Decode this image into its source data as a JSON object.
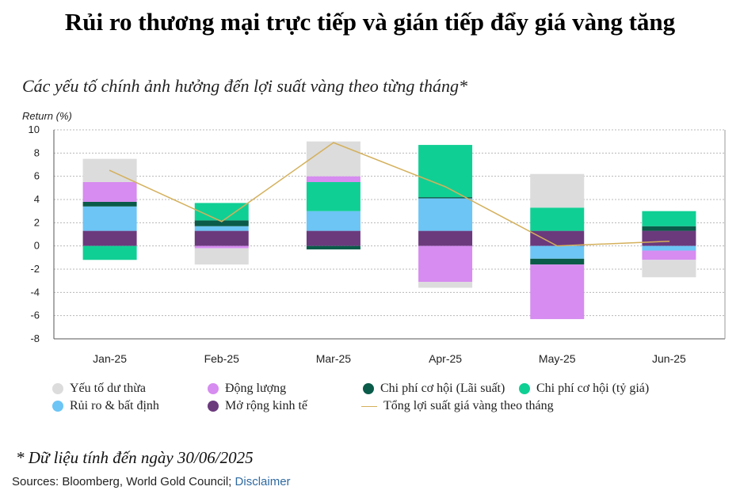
{
  "title": "Rủi ro thương mại trực tiếp và gián tiếp đẩy giá vàng tăng",
  "subtitle": "Các yếu tố chính ảnh hưởng đến lợi suất vàng theo từng tháng*",
  "footnote": "* Dữ liệu tính đến ngày 30/06/2025",
  "sources": {
    "text": "Sources: Bloomberg, World Gold Council;",
    "link": "Disclaimer"
  },
  "chart_data": {
    "type": "bar",
    "stacked": true,
    "ylabel": "Return (%)",
    "ylim": [
      -8,
      10
    ],
    "yticks": [
      10,
      8,
      6,
      4,
      2,
      0,
      -2,
      -4,
      -6,
      -8
    ],
    "grid": true,
    "legend_position": "bottom",
    "categories": [
      "Jan-25",
      "Feb-25",
      "Mar-25",
      "Apr-25",
      "May-25",
      "Jun-25"
    ],
    "series": [
      {
        "name": "Mở rộng kinh tế",
        "color": "#6b3a7d",
        "values": [
          1.3,
          1.3,
          1.3,
          1.3,
          1.3,
          1.3
        ]
      },
      {
        "name": "Rủi ro & bất định",
        "color": "#6cc5f5",
        "values": [
          2.1,
          0.4,
          1.7,
          2.8,
          -1.1,
          -0.4
        ]
      },
      {
        "name": "Chi phí cơ hội (Lãi suất)",
        "color": "#0a5b49",
        "values": [
          0.4,
          0.5,
          -0.3,
          0.1,
          -0.5,
          0.4
        ]
      },
      {
        "name": "Chi phí cơ hội (tỷ giá)",
        "color": "#10cf94",
        "values": [
          -1.2,
          1.5,
          2.5,
          4.5,
          2.0,
          1.3
        ]
      },
      {
        "name": "Động lượng",
        "color": "#d68cf0",
        "values": [
          1.7,
          -0.2,
          0.5,
          -3.1,
          -4.7,
          -0.8
        ]
      },
      {
        "name": "Yếu tố dư thừa",
        "color": "#dcdcdc",
        "values": [
          2.0,
          -1.4,
          3.0,
          -0.5,
          2.9,
          -1.5
        ]
      }
    ],
    "total_line": {
      "name": "Tổng lợi suất giá vàng theo tháng",
      "color": "#d4b05b",
      "values": [
        6.5,
        2.1,
        8.9,
        5.1,
        0.0,
        0.4
      ]
    }
  },
  "legend": [
    {
      "label": "Yếu tố dư thừa",
      "color": "#dcdcdc",
      "kind": "dot"
    },
    {
      "label": "Động lượng",
      "color": "#d68cf0",
      "kind": "dot"
    },
    {
      "label": "Chi phí cơ hội (Lãi suất)",
      "color": "#0a5b49",
      "kind": "dot"
    },
    {
      "label": "Chi phí cơ hội (tỷ giá)",
      "color": "#10cf94",
      "kind": "dot"
    },
    {
      "label": "Rủi ro & bất định",
      "color": "#6cc5f5",
      "kind": "dot"
    },
    {
      "label": "Mở rộng kinh tế",
      "color": "#6b3a7d",
      "kind": "dot"
    },
    {
      "label": "Tổng lợi suất giá vàng theo tháng",
      "color": "#d4b05b",
      "kind": "line"
    }
  ]
}
